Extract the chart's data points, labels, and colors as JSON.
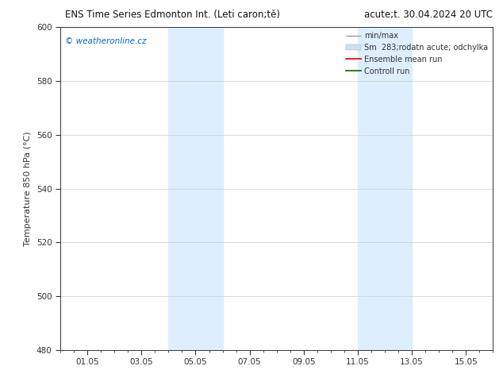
{
  "title_left": "ENS Time Series Edmonton Int. (Leti caron;tě)",
  "title_right": "acute;t. 30.04.2024 20 UTC",
  "ylabel": "Temperature 850 hPa (°C)",
  "ylim": [
    480,
    600
  ],
  "yticks": [
    480,
    500,
    520,
    540,
    560,
    580,
    600
  ],
  "xtick_labels": [
    "01.05",
    "03.05",
    "05.05",
    "07.05",
    "09.05",
    "11.05",
    "13.05",
    "15.05"
  ],
  "xtick_positions": [
    1,
    3,
    5,
    7,
    9,
    11,
    13,
    15
  ],
  "xlim": [
    0,
    16
  ],
  "blue_bands": [
    {
      "x_start": 4,
      "x_end": 6
    },
    {
      "x_start": 11,
      "x_end": 13
    }
  ],
  "background_color": "#ffffff",
  "band_color": "#ddeeff",
  "watermark_text": "© weatheronline.cz",
  "watermark_color": "#0066cc",
  "grid_color": "#cccccc",
  "axis_color": "#333333",
  "title_fontsize": 8.5,
  "label_fontsize": 8,
  "tick_fontsize": 7.5,
  "legend_fontsize": 7,
  "watermark_fontsize": 7.5
}
